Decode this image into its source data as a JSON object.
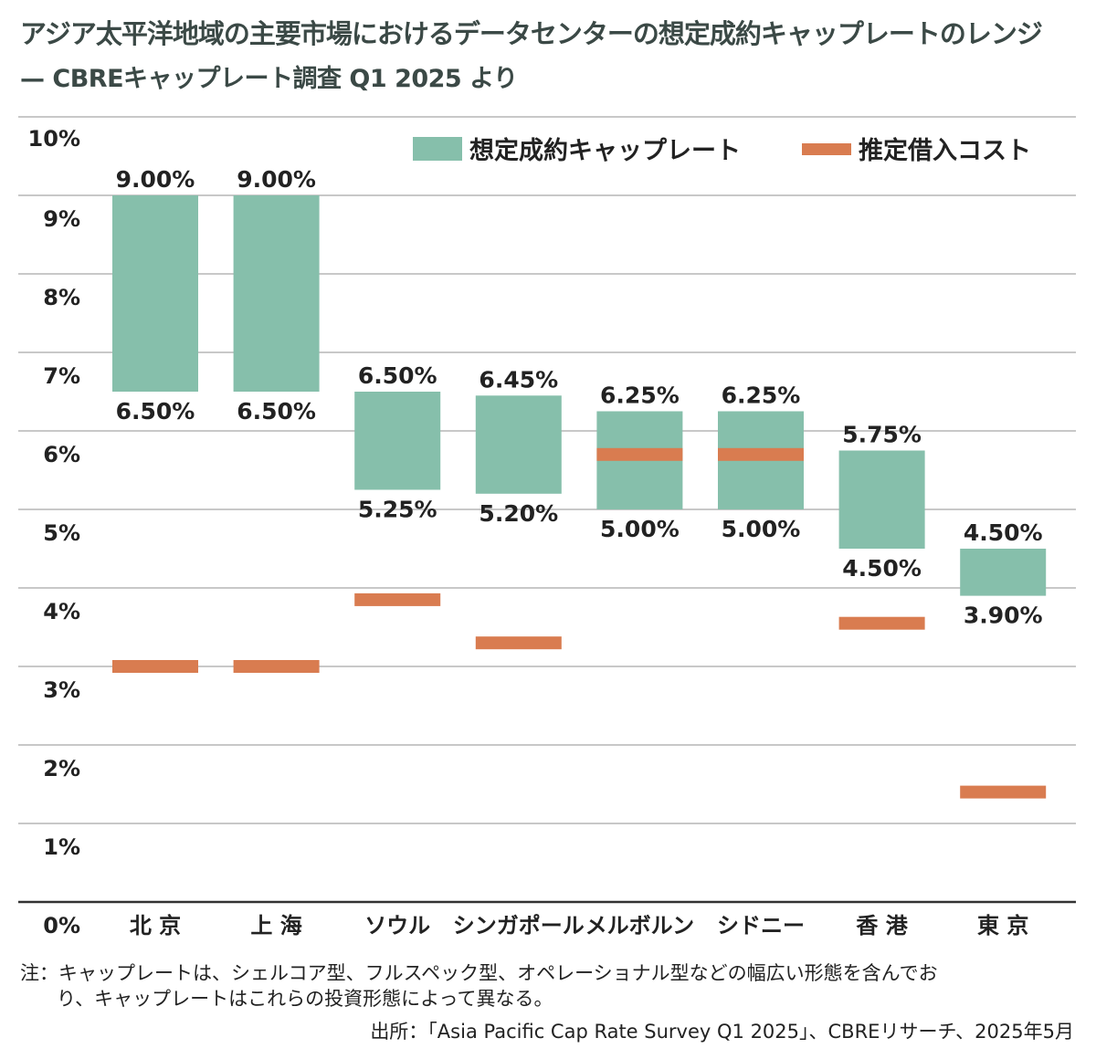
{
  "title": "アジア太平洋地域の主要市場におけるデータセンターの想定成約キャップレートのレンジ",
  "subtitle": "— CBREキャップレート調査 Q1 2025 より",
  "chart_data": {
    "type": "bar",
    "subtype": "floating-range-with-marker",
    "categories": [
      "北 京",
      "上 海",
      "ソウル",
      "シンガポール",
      "メルボルン",
      "シドニー",
      "香 港",
      "東 京"
    ],
    "series": [
      {
        "name": "想定成約キャップレート",
        "type": "range",
        "color": "#86bfab",
        "low": [
          6.5,
          6.5,
          5.25,
          5.2,
          5.0,
          5.0,
          4.5,
          3.9
        ],
        "high": [
          9.0,
          9.0,
          6.5,
          6.45,
          6.25,
          6.25,
          5.75,
          4.5
        ],
        "low_labels": [
          "6.50%",
          "6.50%",
          "5.25%",
          "5.20%",
          "5.00%",
          "5.00%",
          "4.50%",
          "3.90%"
        ],
        "high_labels": [
          "9.00%",
          "9.00%",
          "6.50%",
          "6.45%",
          "6.25%",
          "6.25%",
          "5.75%",
          "4.50%"
        ]
      },
      {
        "name": "推定借入コスト",
        "type": "marker",
        "color": "#d97c50",
        "values": [
          3.0,
          3.0,
          3.85,
          3.3,
          5.7,
          5.7,
          3.55,
          1.4
        ]
      }
    ],
    "yticks": [
      "0%",
      "1%",
      "2%",
      "3%",
      "4%",
      "5%",
      "6%",
      "7%",
      "8%",
      "9%",
      "10%"
    ],
    "ylim": [
      0,
      10
    ],
    "grid": true,
    "legend": "top-right",
    "xlabel": "",
    "ylabel": ""
  },
  "note_line1": "注：キャップレートは、シェルコア型、フルスペック型、オペレーショナル型などの幅広い形態を含んでお",
  "note_line2": "り、キャップレートはこれらの投資形態によって異なる。",
  "source": "出所：「Asia Pacific Cap Rate Survey Q1 2025」、CBREリサーチ、2025年5月"
}
